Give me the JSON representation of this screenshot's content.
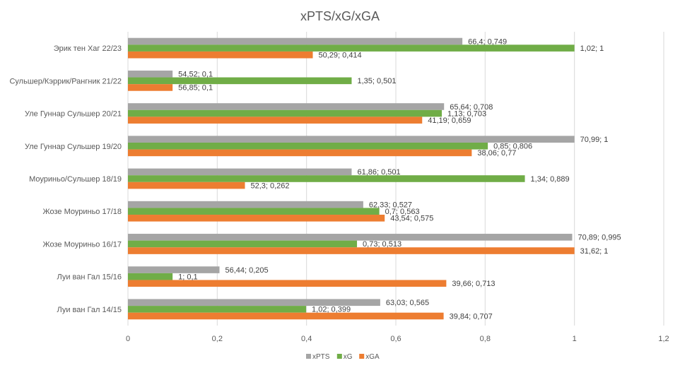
{
  "chart_data": {
    "type": "bar",
    "orientation": "horizontal",
    "title": "xPTS/xG/xGA",
    "xlim": [
      0,
      1.2
    ],
    "x_ticks": [
      "0",
      "0,2",
      "0,4",
      "0,6",
      "0,8",
      "1",
      "1,2"
    ],
    "x_tick_values": [
      0,
      0.2,
      0.4,
      0.6,
      0.8,
      1,
      1.2
    ],
    "grid": true,
    "legend_position": "bottom",
    "categories": [
      "Эрик тен Хаг 22/23",
      "Сульшер/Кэррик/Рангник 21/22",
      "Уле Гуннар Сульшер 20/21",
      "Уле Гуннар Сульшер 19/20",
      "Моуриньо/Сульшер 18/19",
      "Жозе Моуриньо 17/18",
      "Жозе Моуриньо 16/17",
      "Луи ван Гал 15/16",
      "Луи ван Гал 14/15"
    ],
    "series": [
      {
        "name": "xPTS",
        "color": "#a5a5a5",
        "values": [
          0.749,
          0.1,
          0.708,
          1,
          0.501,
          0.527,
          0.995,
          0.205,
          0.565
        ],
        "labels": [
          "66,4; 0,749",
          "54,52; 0,1",
          "65,64; 0,708",
          "70,99; 1",
          "61,86; 0,501",
          "62,33; 0,527",
          "70,89; 0,995",
          "56,44; 0,205",
          "63,03; 0,565"
        ]
      },
      {
        "name": "xG",
        "color": "#70ad47",
        "values": [
          1,
          0.501,
          0.703,
          0.806,
          0.889,
          0.563,
          0.513,
          0.1,
          0.399
        ],
        "labels": [
          "1,02; 1",
          "1,35; 0,501",
          "1,13; 0,703",
          "0,85; 0,806",
          "1,34; 0,889",
          "0,7; 0,563",
          "0,73; 0,513",
          "1; 0,1",
          "1,02; 0,399"
        ]
      },
      {
        "name": "xGA",
        "color": "#ed7d31",
        "values": [
          0.414,
          0.1,
          0.659,
          0.77,
          0.262,
          0.575,
          1,
          0.713,
          0.707
        ],
        "labels": [
          "50,29; 0,414",
          "56,85; 0,1",
          "41,19; 0,659",
          "38,06; 0,77",
          "52,3; 0,262",
          "43,54; 0,575",
          "31,62; 1",
          "39,66; 0,713",
          "39,84; 0,707"
        ]
      }
    ]
  }
}
